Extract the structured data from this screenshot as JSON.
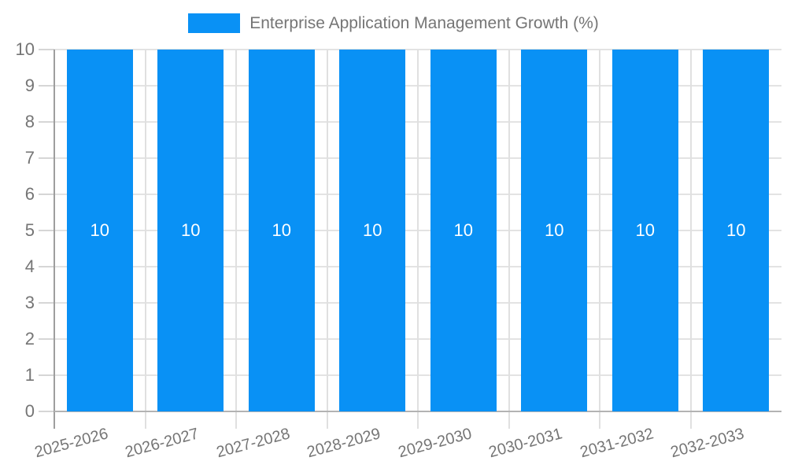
{
  "legend": {
    "label": "Enterprise Application Management Growth (%)"
  },
  "colors": {
    "bar": "#0991F5",
    "label_text": "#757575",
    "value_label": "#FFFFFF",
    "gridline_h": "#E3E3E3",
    "gridline_v": "#E0E0E0",
    "axis_line": "#9E9E9E",
    "baseline": "#B3B3B3",
    "tick": "#D6D6D6",
    "background": "#FFFFFF"
  },
  "chart_data": {
    "type": "bar",
    "title": "Enterprise Application Management Growth (%)",
    "categories": [
      "2025-2026",
      "2026-2027",
      "2027-2028",
      "2028-2029",
      "2029-2030",
      "2030-2031",
      "2031-2032",
      "2032-2033"
    ],
    "series": [
      {
        "name": "Enterprise Application Management Growth (%)",
        "values": [
          10,
          10,
          10,
          10,
          10,
          10,
          10,
          10
        ]
      }
    ],
    "bar_labels": [
      "10",
      "10",
      "10",
      "10",
      "10",
      "10",
      "10",
      "10"
    ],
    "xlabel": "",
    "ylabel": "",
    "ylim": [
      0,
      10
    ],
    "yticks": [
      0,
      1,
      2,
      3,
      4,
      5,
      6,
      7,
      8,
      9,
      10
    ],
    "grid": true,
    "legend_position": "top-center",
    "value_label_position": "inside-middle",
    "x_tick_rotation_deg": -15
  }
}
